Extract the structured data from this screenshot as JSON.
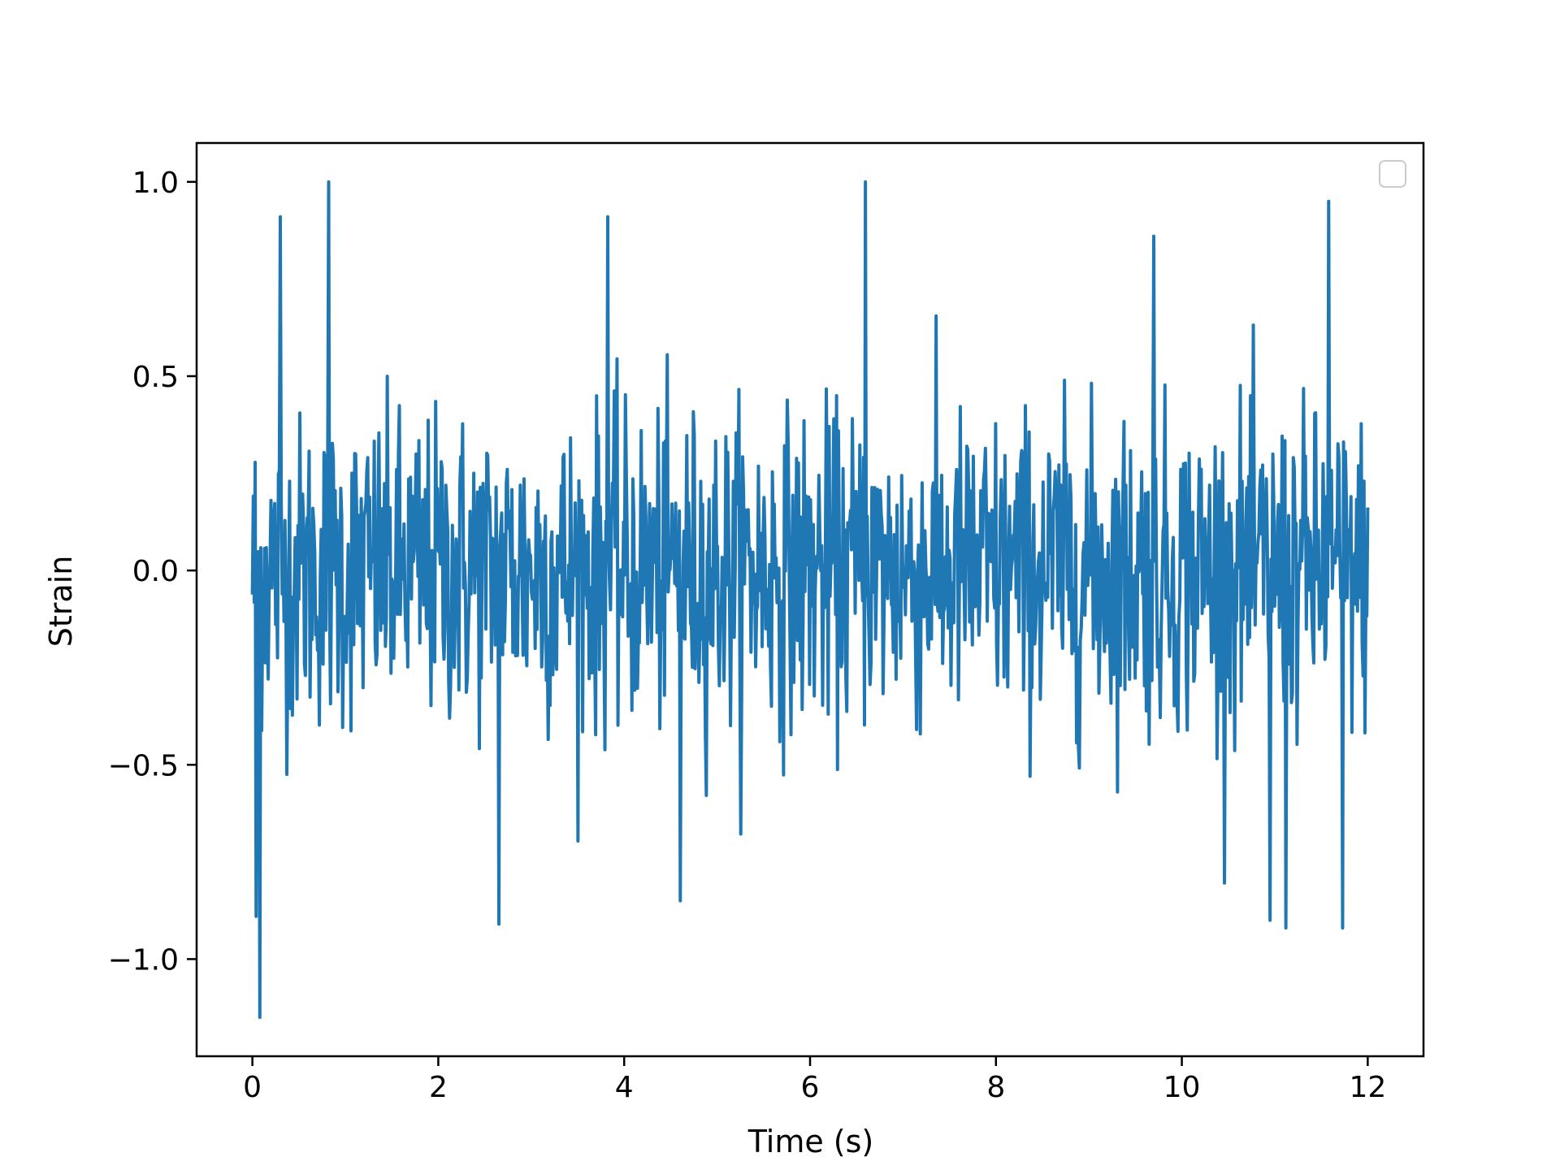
{
  "chart_data": {
    "type": "line",
    "title": "",
    "xlabel": "Time (s)",
    "ylabel": "Strain",
    "xlim": [
      -0.6,
      12.6
    ],
    "ylim": [
      -1.25,
      1.1
    ],
    "xticks": [
      0,
      2,
      4,
      6,
      8,
      10,
      12
    ],
    "xtick_labels": [
      "0",
      "2",
      "4",
      "6",
      "8",
      "10",
      "12"
    ],
    "yticks": [
      -1.0,
      -0.5,
      0.0,
      0.5,
      1.0
    ],
    "ytick_labels": [
      "−1.0",
      "−0.5",
      "0.0",
      "0.5",
      "1.0"
    ],
    "grid": false,
    "legend": {
      "location": "upper right",
      "entries": []
    },
    "series": [
      {
        "color": "#1f77b4",
        "x_start": 0,
        "x_end": 12,
        "samples": 1200,
        "description_values": {
          "typical_range": [
            -0.5,
            0.5
          ],
          "max": 1.0,
          "min": -1.15
        },
        "extremes": [
          {
            "x": 0.08,
            "y": -1.15
          },
          {
            "x": 0.82,
            "y": 1.0
          },
          {
            "x": 6.6,
            "y": 1.0
          },
          {
            "x": 2.65,
            "y": -0.91
          },
          {
            "x": 11.12,
            "y": -0.92
          },
          {
            "x": 11.73,
            "y": -0.92
          },
          {
            "x": 11.58,
            "y": 0.95
          },
          {
            "x": 0.3,
            "y": 0.91
          },
          {
            "x": 3.82,
            "y": 0.91
          },
          {
            "x": 0.04,
            "y": -0.89
          },
          {
            "x": 4.6,
            "y": -0.85
          },
          {
            "x": 9.7,
            "y": 0.86
          },
          {
            "x": 10.95,
            "y": -0.9
          }
        ]
      }
    ]
  }
}
